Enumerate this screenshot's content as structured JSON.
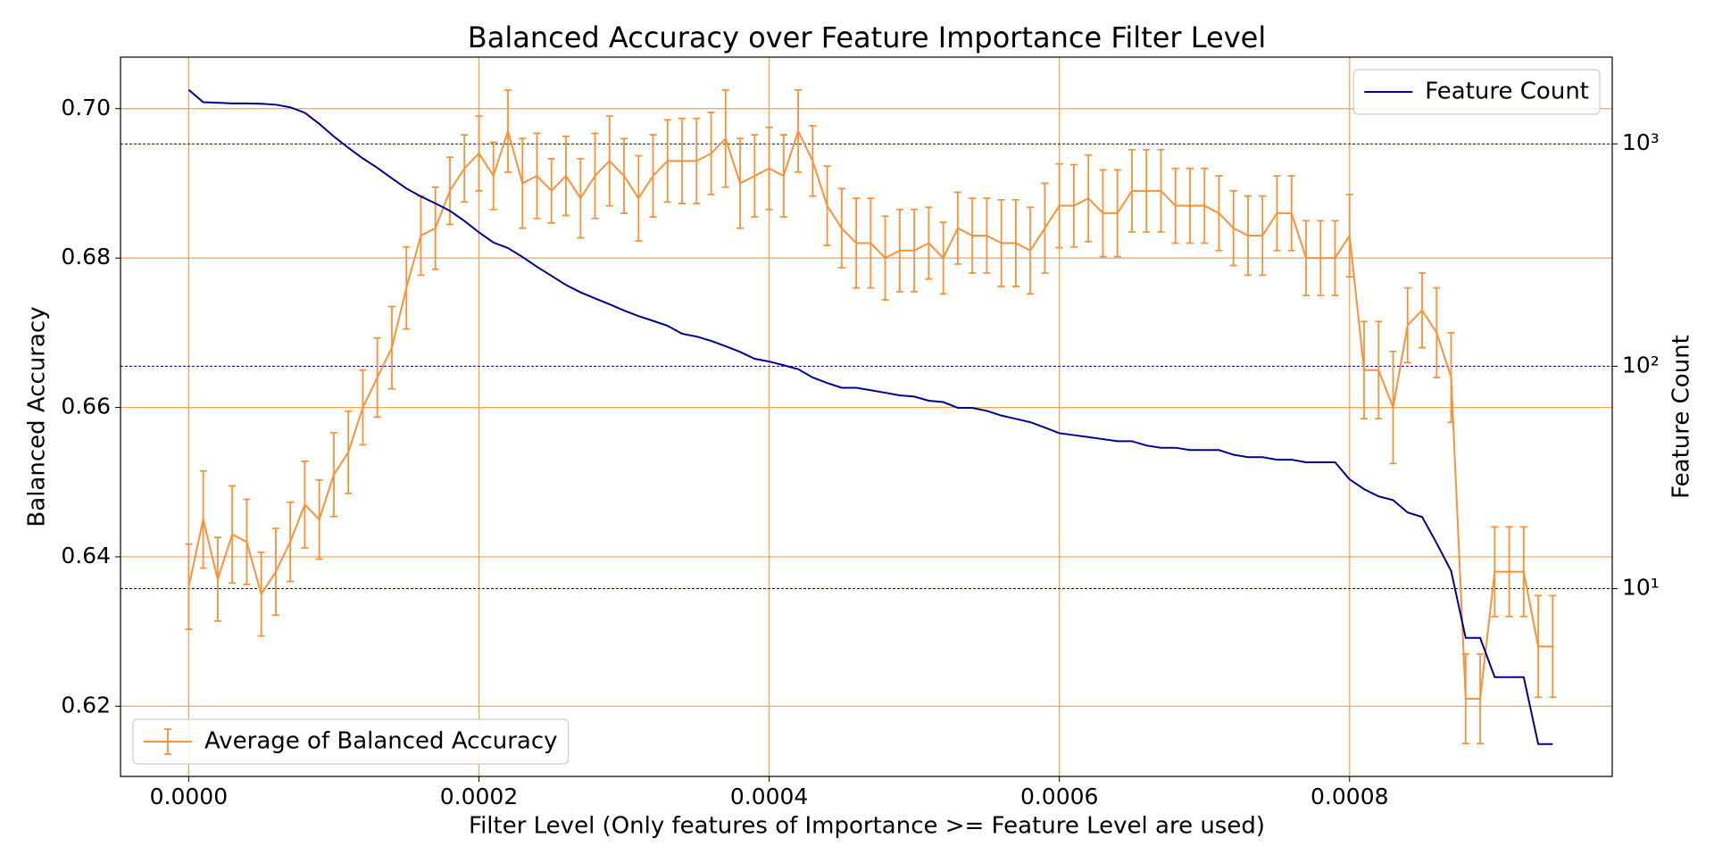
{
  "chart_data": {
    "type": "line",
    "title": "Balanced Accuracy over Feature Importance Filter Level",
    "x_label": "Filter Level (Only features of Importance >= Feature Level are used)",
    "y_label": "Balanced Accuracy",
    "y2_label": "Feature Count",
    "x": [
      0,
      1e-05,
      2e-05,
      3e-05,
      4e-05,
      5e-05,
      6e-05,
      7e-05,
      8e-05,
      9e-05,
      0.0001,
      0.00011,
      0.00012,
      0.00013,
      0.00014,
      0.00015,
      0.00016,
      0.00017,
      0.00018,
      0.00019,
      0.0002,
      0.00021,
      0.00022,
      0.00023,
      0.00024,
      0.00025,
      0.00026,
      0.00027,
      0.00028,
      0.00029,
      0.0003,
      0.00031,
      0.00032,
      0.00033,
      0.00034,
      0.00035,
      0.00036,
      0.00037,
      0.00038,
      0.00039,
      0.0004,
      0.00041,
      0.00042,
      0.00043,
      0.00044,
      0.00045,
      0.00046,
      0.00047,
      0.00048,
      0.00049,
      0.0005,
      0.00051,
      0.00052,
      0.00053,
      0.00054,
      0.00055,
      0.00056,
      0.00057,
      0.00058,
      0.00059,
      0.0006,
      0.00061,
      0.00062,
      0.00063,
      0.00064,
      0.00065,
      0.00066,
      0.00067,
      0.00068,
      0.00069,
      0.0007,
      0.00071,
      0.00072,
      0.00073,
      0.00074,
      0.00075,
      0.00076,
      0.00077,
      0.00078,
      0.00079,
      0.0008,
      0.00081,
      0.00082,
      0.00083,
      0.00084,
      0.00085,
      0.00086,
      0.00087,
      0.00088,
      0.00089,
      0.0009,
      0.00091,
      0.00092,
      0.00093,
      0.00094
    ],
    "xlim": [
      -4.7e-05,
      0.000981
    ],
    "xticks": [
      {
        "value": 0,
        "label": "0.0000"
      },
      {
        "value": 0.0002,
        "label": "0.0002"
      },
      {
        "value": 0.0004,
        "label": "0.0004"
      },
      {
        "value": 0.0006,
        "label": "0.0006"
      },
      {
        "value": 0.0008,
        "label": "0.0008"
      }
    ],
    "ylim": [
      0.6106,
      0.7069
    ],
    "yticks": [
      0.62,
      0.64,
      0.66,
      0.68,
      {
        "value": 0.7,
        "label": "0.70"
      }
    ],
    "y2lim": [
      1.43,
      2455
    ],
    "y2ticks": [
      {
        "value": 10,
        "label": "10¹"
      },
      {
        "value": 100,
        "label": "10²"
      },
      {
        "value": 1000,
        "label": "10³"
      }
    ],
    "y2_log": true,
    "grid": true,
    "grid_color": "#f7a050",
    "y2_grid_color": "#00008b",
    "series": [
      {
        "name": "Average of Balanced Accuracy",
        "color": "#f7923a",
        "legend": "lower left",
        "values": [
          0.636,
          0.645,
          0.637,
          0.643,
          0.642,
          0.635,
          0.638,
          0.642,
          0.647,
          0.645,
          0.651,
          0.654,
          0.66,
          0.664,
          0.668,
          0.676,
          0.683,
          0.684,
          0.689,
          0.692,
          0.694,
          0.691,
          0.697,
          0.69,
          0.691,
          0.689,
          0.691,
          0.688,
          0.691,
          0.693,
          0.691,
          0.688,
          0.691,
          0.693,
          0.693,
          0.693,
          0.694,
          0.696,
          0.69,
          0.691,
          0.692,
          0.691,
          0.697,
          0.693,
          0.687,
          0.684,
          0.682,
          0.682,
          0.68,
          0.681,
          0.681,
          0.682,
          0.68,
          0.684,
          0.683,
          0.683,
          0.682,
          0.682,
          0.681,
          0.684,
          0.687,
          0.687,
          0.688,
          0.686,
          0.686,
          0.689,
          0.689,
          0.689,
          0.687,
          0.687,
          0.687,
          0.686,
          0.684,
          0.683,
          0.683,
          0.686,
          0.686,
          0.68,
          0.68,
          0.68,
          0.683,
          0.665,
          0.665,
          0.66,
          0.671,
          0.673,
          0.67,
          0.664,
          0.621,
          0.621,
          0.638,
          0.638,
          0.638,
          0.628,
          0.628
        ],
        "errors": [
          0.0057,
          0.0065,
          0.0056,
          0.0065,
          0.0057,
          0.0056,
          0.0058,
          0.0053,
          0.0058,
          0.0053,
          0.0056,
          0.0055,
          0.005,
          0.0053,
          0.0055,
          0.0055,
          0.0053,
          0.0055,
          0.0045,
          0.0045,
          0.005,
          0.0045,
          0.0055,
          0.006,
          0.0057,
          0.0043,
          0.0053,
          0.0053,
          0.0057,
          0.006,
          0.005,
          0.0057,
          0.0055,
          0.0055,
          0.0057,
          0.0057,
          0.0055,
          0.0065,
          0.006,
          0.0055,
          0.0055,
          0.0055,
          0.0055,
          0.0047,
          0.0053,
          0.0053,
          0.006,
          0.006,
          0.0056,
          0.0055,
          0.0055,
          0.0048,
          0.0048,
          0.0048,
          0.005,
          0.005,
          0.0058,
          0.0058,
          0.0058,
          0.006,
          0.0056,
          0.0055,
          0.0058,
          0.0058,
          0.0058,
          0.0055,
          0.0055,
          0.0055,
          0.005,
          0.005,
          0.005,
          0.005,
          0.005,
          0.0053,
          0.0053,
          0.005,
          0.005,
          0.005,
          0.005,
          0.005,
          0.0055,
          0.0065,
          0.0065,
          0.0075,
          0.005,
          0.005,
          0.006,
          0.006,
          0.006,
          0.006,
          0.006,
          0.006,
          0.006,
          0.0068,
          0.0068
        ]
      },
      {
        "name": "Feature Count",
        "color": "#00008b",
        "axis": "y2",
        "legend": "upper right",
        "values": [
          1750,
          1540,
          1530,
          1520,
          1520,
          1515,
          1500,
          1460,
          1380,
          1230,
          1080,
          960,
          860,
          780,
          700,
          630,
          580,
          540,
          500,
          450,
          400,
          360,
          340,
          310,
          280,
          255,
          232,
          215,
          202,
          190,
          178,
          168,
          160,
          152,
          140,
          136,
          130,
          123,
          116,
          108,
          105,
          101,
          97,
          89,
          84,
          80,
          80,
          78,
          76,
          74,
          73,
          70,
          69,
          65,
          65,
          63,
          60,
          58,
          56,
          53,
          50,
          49,
          48,
          47,
          46,
          46,
          44,
          43,
          43,
          42,
          42,
          42,
          40,
          39,
          39,
          38,
          38,
          37,
          37,
          37,
          31,
          28,
          26,
          25,
          22,
          21,
          16,
          12,
          6,
          6,
          4,
          4,
          4,
          2,
          2
        ]
      }
    ]
  }
}
